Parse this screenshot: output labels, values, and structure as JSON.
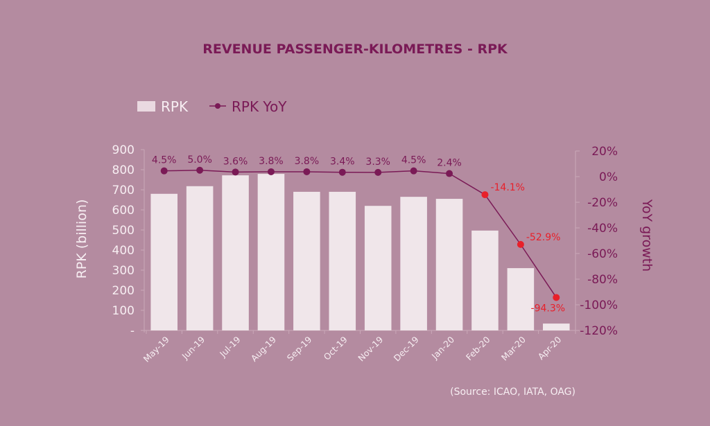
{
  "chart_data": {
    "type": "bar",
    "title": "REVENUE PASSENGER-KILOMETRES - RPK",
    "categories": [
      "May-19",
      "Jun-19",
      "Jul-19",
      "Aug-19",
      "Sep-19",
      "Oct-19",
      "Nov-19",
      "Dec-19",
      "Jan-20",
      "Feb-20",
      "Mar-20",
      "Apr-20"
    ],
    "series": [
      {
        "name": "RPK",
        "type": "bar",
        "axis": "left",
        "values": [
          680,
          718,
          772,
          779,
          690,
          690,
          620,
          665,
          655,
          497,
          310,
          34
        ]
      },
      {
        "name": "RPK YoY",
        "type": "line",
        "axis": "right",
        "values": [
          4.5,
          5.0,
          3.6,
          3.8,
          3.8,
          3.4,
          3.3,
          4.5,
          2.4,
          -14.1,
          -52.9,
          -94.3
        ],
        "labels": [
          "4.5%",
          "5.0%",
          "3.6%",
          "3.8%",
          "3.8%",
          "3.4%",
          "3.3%",
          "4.5%",
          "2.4%",
          "-14.1%",
          "-52.9%",
          "-94.3%"
        ]
      }
    ],
    "ylabel_left": "RPK (billion)",
    "ylabel_right": "YoY growth",
    "ylim_left": [
      0,
      900
    ],
    "ylim_right": [
      -120,
      20
    ],
    "yticks_left": [
      "-",
      "100",
      "200",
      "300",
      "400",
      "500",
      "600",
      "700",
      "800",
      "900"
    ],
    "yticks_right": [
      "20%",
      "0%",
      "-20%",
      "-40%",
      "-60%",
      "-80%",
      "-100%",
      "-120%"
    ],
    "legend": {
      "placement": "top-left",
      "entries": [
        "RPK",
        "RPK YoY"
      ]
    },
    "grid": false,
    "source": "(Source: ICAO, IATA, OAG)"
  },
  "colors": {
    "background": "#b48ba0",
    "bar": "#f0e6ea",
    "line": "#7a1a56",
    "negative_marker": "#e8202a",
    "axis": "#caa8b8"
  }
}
